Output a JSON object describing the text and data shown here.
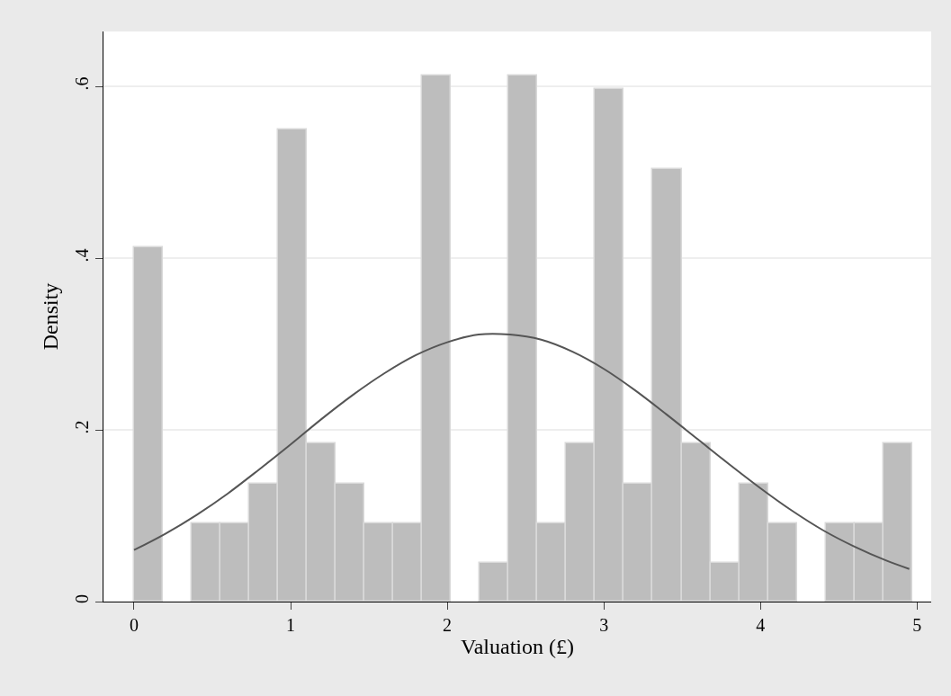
{
  "chart_data": {
    "type": "histogram",
    "xlabel": "Valuation (£)",
    "ylabel": "Density",
    "bins": [
      0,
      0.184,
      0.368,
      0.552,
      0.736,
      0.92,
      1.104,
      1.288,
      1.472,
      1.656,
      1.84,
      2.024,
      2.208,
      2.392,
      2.576,
      2.76,
      2.944,
      3.128,
      3.312,
      3.496,
      3.68,
      3.864,
      4.048,
      4.232,
      4.416,
      4.6,
      4.784,
      4.968
    ],
    "values": [
      0.413,
      0,
      0.091,
      0.091,
      0.137,
      0.55,
      0.184,
      0.137,
      0.091,
      0.091,
      0.613,
      0,
      0.045,
      0.613,
      0.091,
      0.184,
      0.597,
      0.137,
      0.504,
      0.184,
      0.045,
      0.137,
      0.091,
      0,
      0.091,
      0.091,
      0.184
    ],
    "color": "#bdbdbd",
    "series": [
      {
        "type": "line",
        "color": "#555555",
        "x": [
          0,
          0.2,
          0.4,
          0.6,
          0.8,
          1.0,
          1.2,
          1.4,
          1.6,
          1.8,
          2.0,
          2.2,
          2.4,
          2.6,
          2.8,
          3.0,
          3.2,
          3.4,
          3.6,
          3.8,
          4.0,
          4.2,
          4.4,
          4.6,
          4.8,
          4.95
        ],
        "values": [
          0.06,
          0.079,
          0.101,
          0.126,
          0.154,
          0.183,
          0.213,
          0.241,
          0.266,
          0.287,
          0.302,
          0.311,
          0.311,
          0.305,
          0.291,
          0.271,
          0.246,
          0.218,
          0.189,
          0.16,
          0.132,
          0.106,
          0.083,
          0.064,
          0.048,
          0.038
        ]
      }
    ],
    "xlim": [
      -0.195,
      5.09
    ],
    "ylim": [
      0,
      0.664
    ],
    "xticks": [
      0,
      1,
      2,
      3,
      4,
      5
    ],
    "yticks": [
      0,
      {
        "value": 0.2,
        "label": ".2"
      },
      {
        "value": 0.4,
        "label": ".4"
      },
      {
        "value": 0.6,
        "label": ".6"
      }
    ],
    "grid": "y",
    "marker": "none",
    "line_style": "solid"
  }
}
